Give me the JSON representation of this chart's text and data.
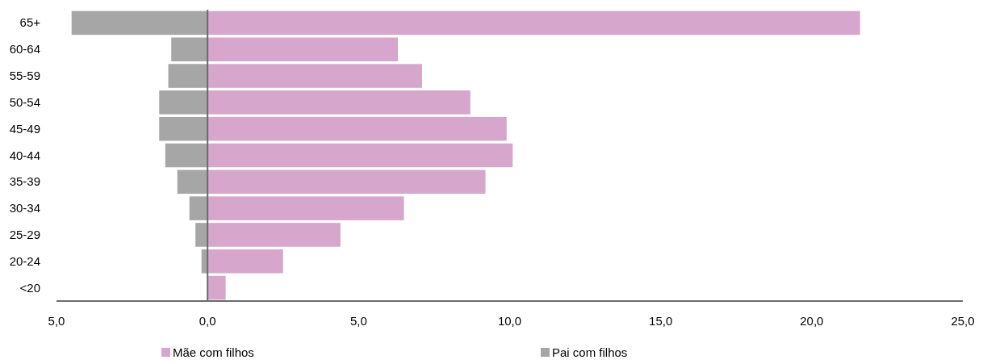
{
  "chart_data": {
    "type": "bar",
    "orientation": "horizontal",
    "stacked": true,
    "categories": [
      "65+",
      "60-64",
      "55-59",
      "50-54",
      "45-49",
      "40-44",
      "35-39",
      "30-34",
      "25-29",
      "20-24",
      "<20"
    ],
    "series": [
      {
        "name": "Mãe com filhos",
        "color": "#d6a6cc",
        "values": [
          21.6,
          6.3,
          7.1,
          8.7,
          9.9,
          10.1,
          9.2,
          6.5,
          4.4,
          2.5,
          0.6
        ]
      },
      {
        "name": "Pai com filhos",
        "color": "#a6a6a6",
        "values": [
          -4.5,
          -1.2,
          -1.3,
          -1.6,
          -1.6,
          -1.4,
          -1.0,
          -0.6,
          -0.4,
          -0.2,
          0
        ]
      }
    ],
    "xlim": [
      -5,
      25
    ],
    "xticks": [
      {
        "value": -5,
        "label": "5,0"
      },
      {
        "value": 0,
        "label": "0,0"
      },
      {
        "value": 5,
        "label": "5,0"
      },
      {
        "value": 10,
        "label": "10,0"
      },
      {
        "value": 15,
        "label": "15,0"
      },
      {
        "value": 20,
        "label": "20,0"
      },
      {
        "value": 25,
        "label": "25,0"
      }
    ],
    "legend": "bottom"
  }
}
